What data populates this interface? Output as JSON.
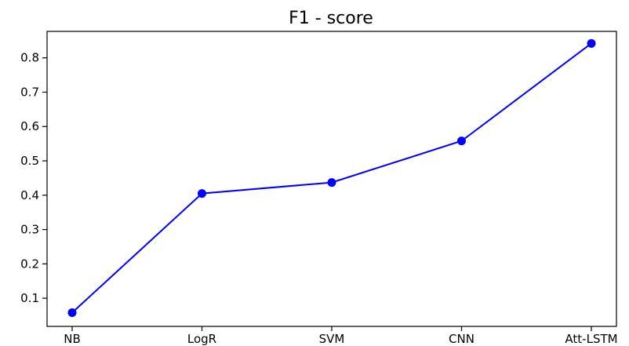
{
  "chart_data": {
    "type": "line",
    "title": "F1 - score",
    "xlabel": "",
    "ylabel": "",
    "categories": [
      "NB",
      "LogR",
      "SVM",
      "CNN",
      "Att-LSTM"
    ],
    "series": [
      {
        "values": [
          0.058,
          0.405,
          0.437,
          0.558,
          0.842
        ],
        "color": "#0000ff",
        "marker": "circle"
      }
    ],
    "ylim": [
      0.018,
      0.877
    ],
    "yticks": [
      0.1,
      0.2,
      0.3,
      0.4,
      0.5,
      0.6,
      0.7,
      0.8
    ],
    "ytick_labels": [
      "0.1",
      "0.2",
      "0.3",
      "0.4",
      "0.5",
      "0.6",
      "0.7",
      "0.8"
    ],
    "grid": false,
    "legend": "none"
  }
}
